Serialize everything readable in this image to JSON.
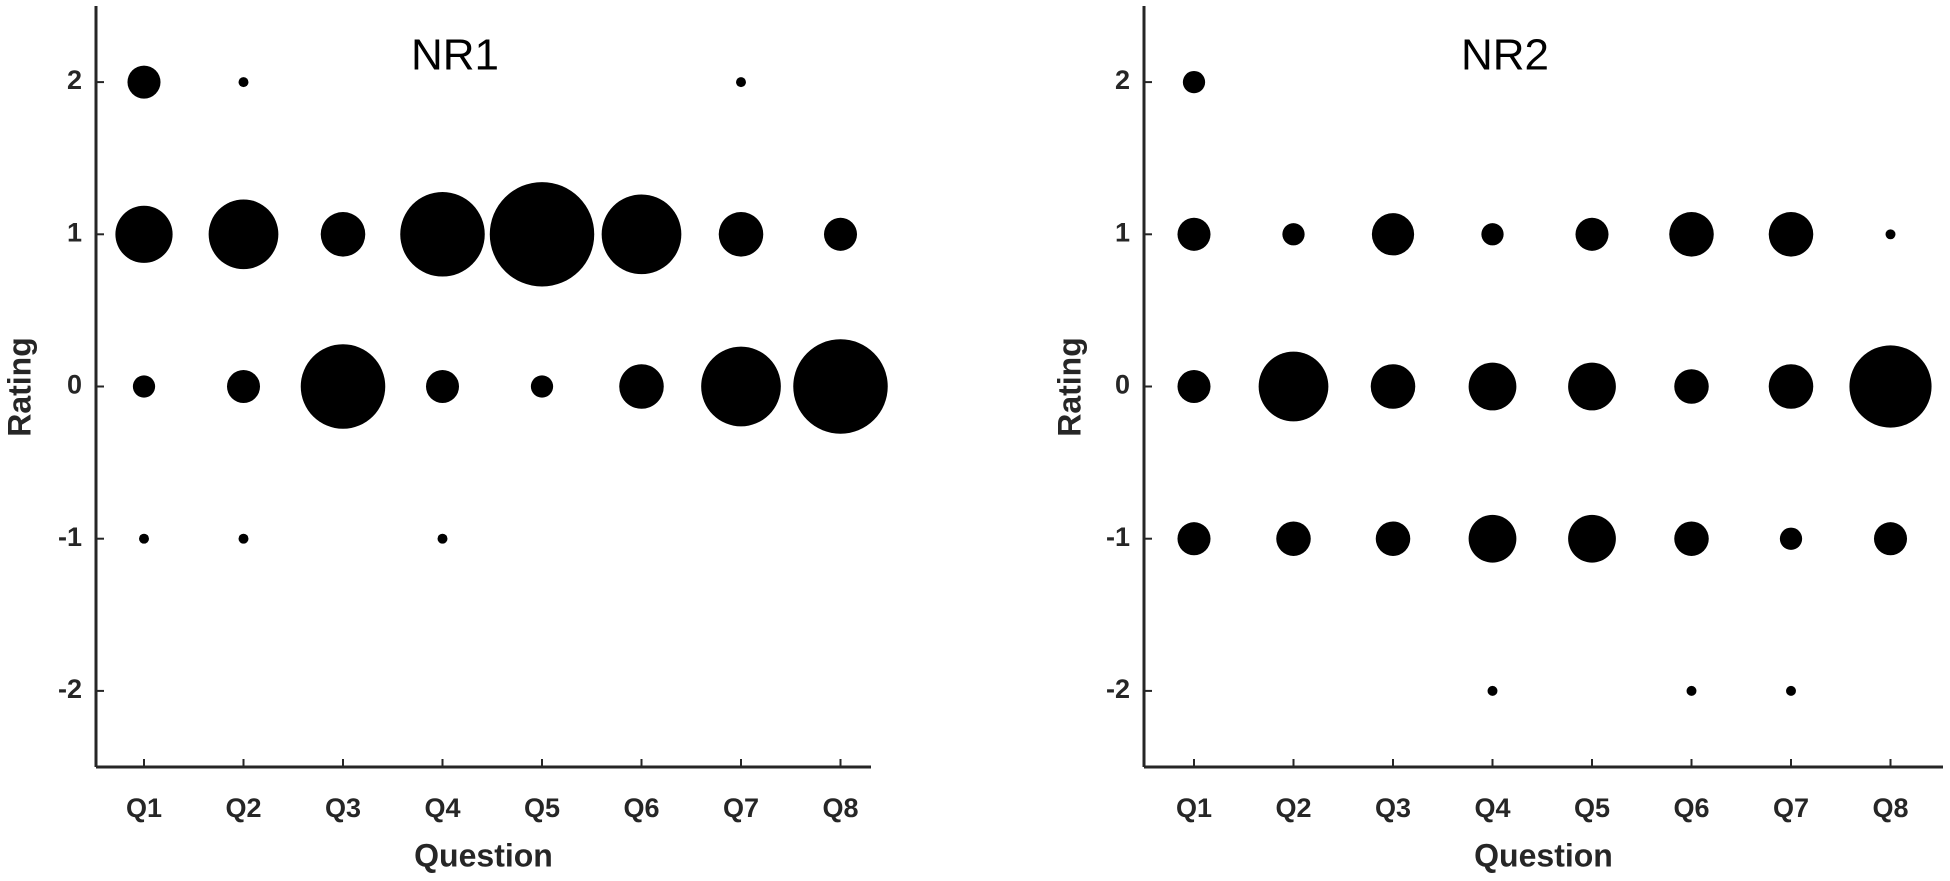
{
  "chart_data": [
    {
      "type": "bubble",
      "title": "NR1",
      "x_label": "Question",
      "y_label": "Rating",
      "color": "#000000",
      "categories": [
        "Q1",
        "Q2",
        "Q3",
        "Q4",
        "Q5",
        "Q6",
        "Q7",
        "Q8"
      ],
      "ylim": [
        -2.5,
        2.5
      ],
      "yticks": [
        -2,
        -1,
        0,
        1,
        2
      ],
      "x": [
        "Q1",
        "Q1",
        "Q1",
        "Q1",
        "Q2",
        "Q2",
        "Q2",
        "Q2",
        "Q3",
        "Q3",
        "Q4",
        "Q4",
        "Q4",
        "Q5",
        "Q5",
        "Q6",
        "Q6",
        "Q7",
        "Q7",
        "Q7",
        "Q8",
        "Q8"
      ],
      "y": [
        2,
        1,
        0,
        -1,
        2,
        1,
        0,
        -1,
        1,
        0,
        1,
        0,
        -1,
        1,
        0,
        1,
        0,
        2,
        1,
        0,
        1,
        0
      ],
      "sizes": [
        11,
        33,
        5,
        1,
        1,
        49,
        11,
        1,
        20,
        72,
        72,
        11,
        1,
        110,
        5,
        64,
        20,
        1,
        20,
        64,
        11,
        90
      ]
    },
    {
      "type": "bubble",
      "title": "NR2",
      "x_label": "Question",
      "y_label": "Rating",
      "color": "#000000",
      "categories": [
        "Q1",
        "Q2",
        "Q3",
        "Q4",
        "Q5",
        "Q6",
        "Q7",
        "Q8"
      ],
      "ylim": [
        -2.5,
        2.5
      ],
      "yticks": [
        -2,
        -1,
        0,
        1,
        2
      ],
      "x": [
        "Q1",
        "Q1",
        "Q1",
        "Q1",
        "Q2",
        "Q2",
        "Q2",
        "Q3",
        "Q3",
        "Q3",
        "Q4",
        "Q4",
        "Q4",
        "Q4",
        "Q5",
        "Q5",
        "Q5",
        "Q6",
        "Q6",
        "Q6",
        "Q6",
        "Q7",
        "Q7",
        "Q7",
        "Q7",
        "Q8",
        "Q8",
        "Q8"
      ],
      "y": [
        2,
        1,
        0,
        -1,
        1,
        0,
        -1,
        1,
        0,
        -1,
        1,
        0,
        -1,
        -2,
        1,
        0,
        -1,
        1,
        0,
        -1,
        -2,
        1,
        0,
        -1,
        -2,
        1,
        0,
        -1
      ],
      "sizes": [
        5,
        11,
        11,
        11,
        5,
        49,
        12,
        18,
        20,
        12,
        5,
        23,
        23,
        1,
        11,
        23,
        23,
        20,
        12,
        12,
        1,
        20,
        20,
        5,
        1,
        1,
        68,
        11
      ]
    }
  ]
}
